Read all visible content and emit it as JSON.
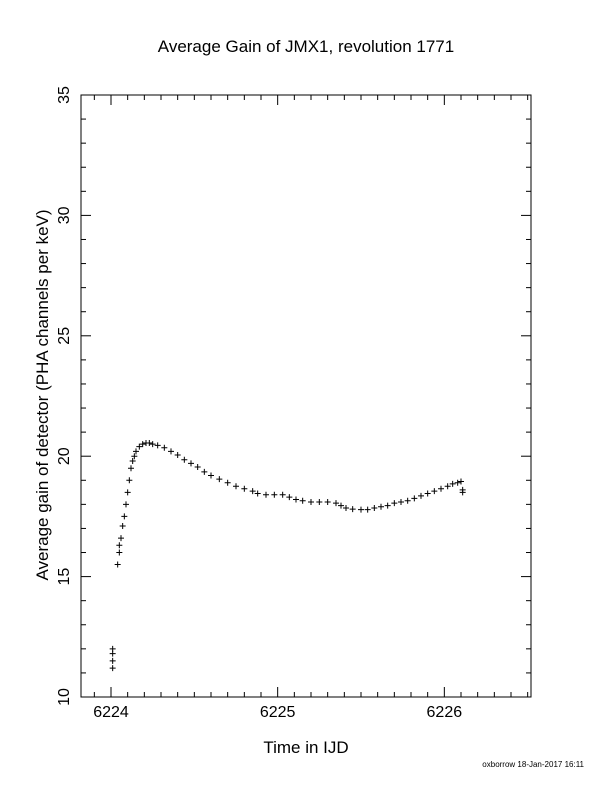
{
  "chart_data": {
    "type": "scatter",
    "title": "Average Gain of JMX1, revolution 1771",
    "xlabel": "Time in IJD",
    "ylabel": "Average gain of detector (PHA channels per keV)",
    "xlim": [
      6223.82,
      6226.52
    ],
    "ylim": [
      10,
      35
    ],
    "xticks": [
      6224,
      6225,
      6226
    ],
    "yticks": [
      10,
      15,
      20,
      25,
      30,
      35
    ],
    "grid": false,
    "marker": "+",
    "series": [
      {
        "points": [
          [
            6224.01,
            11.2
          ],
          [
            6224.01,
            11.5
          ],
          [
            6224.01,
            11.8
          ],
          [
            6224.01,
            12.0
          ],
          [
            6224.04,
            15.5
          ],
          [
            6224.05,
            16.0
          ],
          [
            6224.05,
            16.3
          ],
          [
            6224.06,
            16.6
          ],
          [
            6224.07,
            17.1
          ],
          [
            6224.08,
            17.5
          ],
          [
            6224.09,
            18.0
          ],
          [
            6224.1,
            18.5
          ],
          [
            6224.11,
            19.0
          ],
          [
            6224.12,
            19.5
          ],
          [
            6224.13,
            19.8
          ],
          [
            6224.14,
            20.0
          ],
          [
            6224.15,
            20.2
          ],
          [
            6224.17,
            20.4
          ],
          [
            6224.19,
            20.5
          ],
          [
            6224.21,
            20.55
          ],
          [
            6224.23,
            20.55
          ],
          [
            6224.25,
            20.5
          ],
          [
            6224.28,
            20.45
          ],
          [
            6224.32,
            20.35
          ],
          [
            6224.36,
            20.2
          ],
          [
            6224.4,
            20.05
          ],
          [
            6224.44,
            19.85
          ],
          [
            6224.48,
            19.7
          ],
          [
            6224.52,
            19.55
          ],
          [
            6224.56,
            19.35
          ],
          [
            6224.6,
            19.2
          ],
          [
            6224.65,
            19.05
          ],
          [
            6224.7,
            18.9
          ],
          [
            6224.75,
            18.75
          ],
          [
            6224.8,
            18.65
          ],
          [
            6224.85,
            18.55
          ],
          [
            6224.88,
            18.45
          ],
          [
            6224.93,
            18.4
          ],
          [
            6224.98,
            18.4
          ],
          [
            6225.03,
            18.4
          ],
          [
            6225.07,
            18.3
          ],
          [
            6225.11,
            18.2
          ],
          [
            6225.15,
            18.15
          ],
          [
            6225.2,
            18.1
          ],
          [
            6225.25,
            18.1
          ],
          [
            6225.3,
            18.1
          ],
          [
            6225.35,
            18.05
          ],
          [
            6225.38,
            17.95
          ],
          [
            6225.41,
            17.85
          ],
          [
            6225.45,
            17.8
          ],
          [
            6225.5,
            17.78
          ],
          [
            6225.54,
            17.78
          ],
          [
            6225.58,
            17.85
          ],
          [
            6225.62,
            17.9
          ],
          [
            6225.66,
            17.95
          ],
          [
            6225.7,
            18.05
          ],
          [
            6225.74,
            18.1
          ],
          [
            6225.78,
            18.15
          ],
          [
            6225.82,
            18.25
          ],
          [
            6225.86,
            18.35
          ],
          [
            6225.9,
            18.45
          ],
          [
            6225.94,
            18.55
          ],
          [
            6225.98,
            18.65
          ],
          [
            6226.02,
            18.75
          ],
          [
            6226.05,
            18.85
          ],
          [
            6226.08,
            18.9
          ],
          [
            6226.1,
            18.95
          ],
          [
            6226.11,
            18.6
          ],
          [
            6226.11,
            18.5
          ]
        ]
      }
    ]
  },
  "footer": "oxborrow 18-Jan-2017 16:11"
}
